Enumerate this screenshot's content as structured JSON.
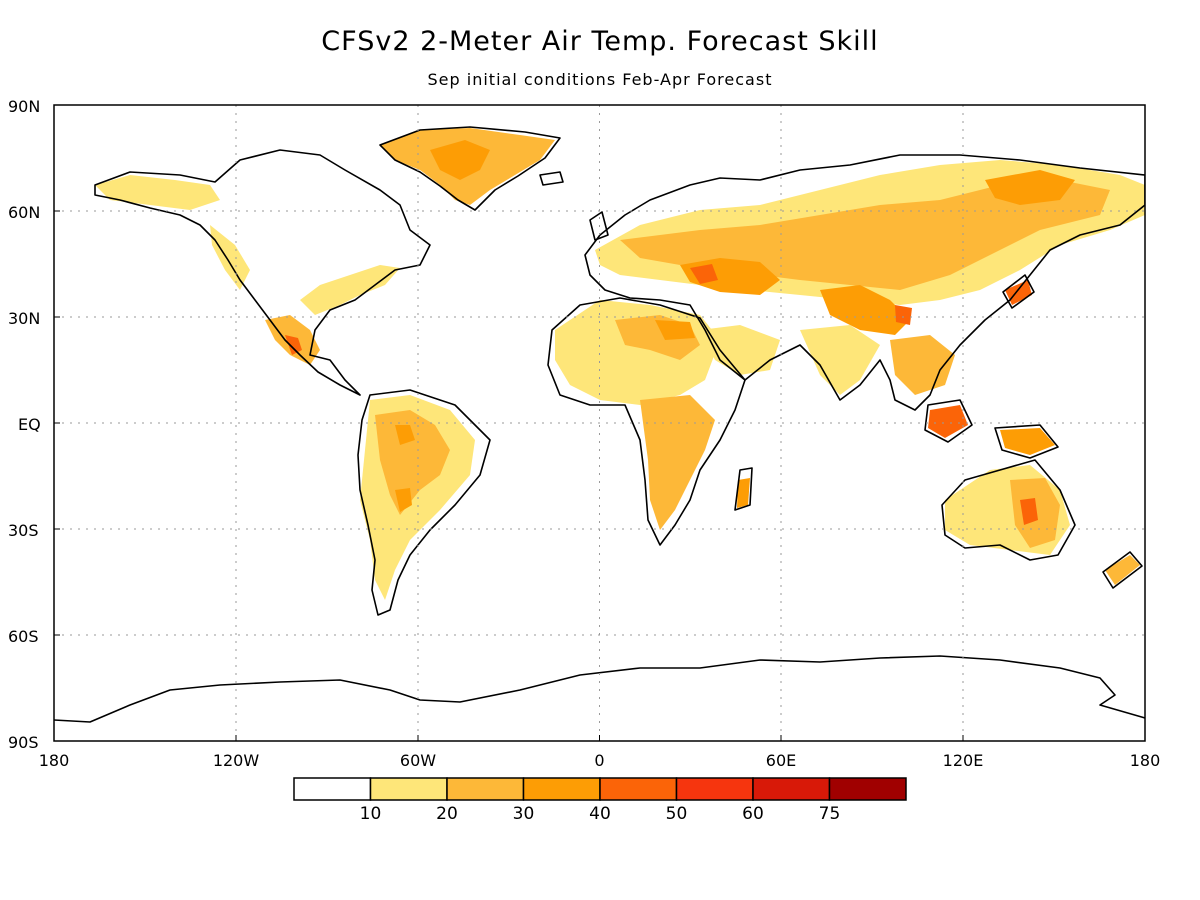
{
  "title": "CFSv2 2-Meter Air Temp. Forecast Skill",
  "subtitle": "Sep initial conditions  Feb-Apr Forecast",
  "axes": {
    "lat_ticks": [
      "90N",
      "60N",
      "30N",
      "EQ",
      "30S",
      "60S",
      "90S"
    ],
    "lon_ticks": [
      "180",
      "120W",
      "60W",
      "0",
      "60E",
      "120E",
      "180"
    ]
  },
  "colorbar": {
    "colors": [
      "#ffffff",
      "#fee679",
      "#fdb838",
      "#fd9d05",
      "#fb6408",
      "#f6350e",
      "#d81908",
      "#a00000"
    ],
    "labels": [
      "10",
      "20",
      "30",
      "40",
      "50",
      "60",
      "75"
    ]
  }
}
